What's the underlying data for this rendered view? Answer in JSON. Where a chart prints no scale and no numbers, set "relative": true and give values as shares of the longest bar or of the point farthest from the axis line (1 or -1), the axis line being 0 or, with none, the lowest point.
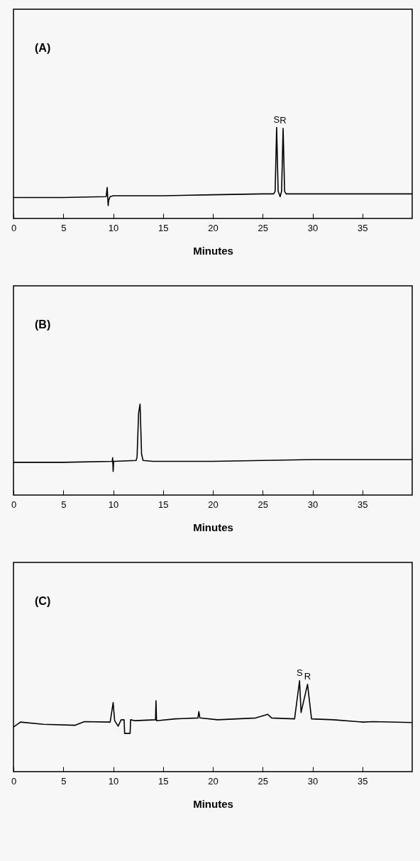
{
  "chart_data": [
    {
      "type": "line",
      "title": "(A)",
      "xlabel": "Minutes",
      "relative": true,
      "xlim": [
        0,
        40
      ],
      "xticks": [
        0,
        5,
        10,
        15,
        20,
        25,
        30,
        35
      ],
      "x": [
        0,
        5,
        9.3,
        9.4,
        9.45,
        9.5,
        9.55,
        9.7,
        10,
        15,
        20,
        25,
        26.1,
        26.25,
        26.4,
        26.55,
        26.75,
        26.9,
        27.05,
        27.2,
        27.35,
        28,
        35,
        40
      ],
      "series": [
        {
          "color": "#000000",
          "values": [
            0.23,
            0.23,
            0.24,
            0.34,
            0.24,
            0.14,
            0.2,
            0.24,
            0.25,
            0.25,
            0.26,
            0.27,
            0.27,
            0.3,
            1.0,
            0.3,
            0.24,
            0.3,
            0.99,
            0.3,
            0.27,
            0.27,
            0.27,
            0.27
          ]
        }
      ],
      "annotations": [
        {
          "text": "S",
          "x": 26.4,
          "y": 1.0
        },
        {
          "text": "R",
          "x": 27.05,
          "y": 0.99
        }
      ]
    },
    {
      "type": "line",
      "title": "(B)",
      "xlabel": "Minutes",
      "relative": true,
      "xlim": [
        0,
        40
      ],
      "xticks": [
        0,
        5,
        10,
        15,
        20,
        25,
        30,
        35
      ],
      "x": [
        0,
        5,
        9.9,
        9.95,
        10,
        10.05,
        10.1,
        12.3,
        12.4,
        12.55,
        12.7,
        12.85,
        13.0,
        14,
        20,
        25,
        30,
        35,
        40
      ],
      "series": [
        {
          "color": "#000000",
          "values": [
            0.36,
            0.36,
            0.37,
            0.41,
            0.26,
            0.37,
            0.37,
            0.38,
            0.42,
            0.9,
            1.0,
            0.45,
            0.38,
            0.37,
            0.37,
            0.38,
            0.39,
            0.39,
            0.39
          ]
        }
      ]
    },
    {
      "type": "line",
      "title": "(C)",
      "xlabel": "Minutes",
      "relative": true,
      "xlim": [
        0,
        40
      ],
      "xticks": [
        0,
        5,
        10,
        15,
        20,
        25,
        30,
        35
      ],
      "x": [
        0,
        0.7,
        3.0,
        6.2,
        7.1,
        9.7,
        10.0,
        10.15,
        10.5,
        10.8,
        11.1,
        11.15,
        11.7,
        11.75,
        12.2,
        14.25,
        14.3,
        14.35,
        16.2,
        18.5,
        18.6,
        18.7,
        20.5,
        24.3,
        25.5,
        25.9,
        28.2,
        28.7,
        28.85,
        29.5,
        29.9,
        32.1,
        35.05,
        36.1,
        40
      ],
      "series": [
        {
          "color": "#000000",
          "values": [
            0.49,
            0.545,
            0.52,
            0.51,
            0.55,
            0.545,
            0.76,
            0.56,
            0.5,
            0.57,
            0.57,
            0.42,
            0.42,
            0.57,
            0.56,
            0.57,
            0.78,
            0.56,
            0.58,
            0.59,
            0.66,
            0.59,
            0.57,
            0.59,
            0.63,
            0.59,
            0.58,
            1.0,
            0.65,
            0.96,
            0.58,
            0.57,
            0.545,
            0.55,
            0.54
          ]
        }
      ],
      "annotations": [
        {
          "text": "S",
          "x": 28.7,
          "y": 1.0
        },
        {
          "text": "R",
          "x": 29.5,
          "y": 0.96
        }
      ]
    }
  ]
}
